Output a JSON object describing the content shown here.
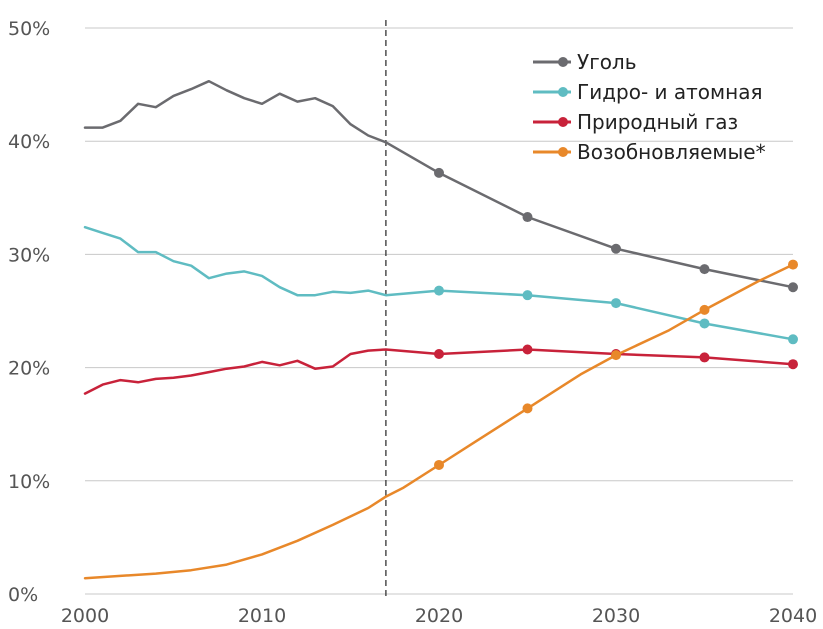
{
  "chart_data": {
    "type": "line",
    "title": "",
    "xlabel": "",
    "ylabel": "",
    "xlim": [
      2000,
      2040
    ],
    "ylim": [
      0,
      50
    ],
    "x_ticks": [
      2000,
      2010,
      2020,
      2030,
      2040
    ],
    "x_tick_labels": [
      "2000",
      "2010",
      "2020",
      "2030",
      "2040"
    ],
    "y_ticks": [
      0,
      10,
      20,
      30,
      40,
      50
    ],
    "y_tick_labels": [
      "0%",
      "10%",
      "20%",
      "30%",
      "40%",
      "50%"
    ],
    "grid": "horizontal",
    "legend_position": "top-right",
    "vertical_marker_x": 2017,
    "series": [
      {
        "name": "Уголь",
        "color": "#6b6b6f",
        "x": [
          2000,
          2001,
          2002,
          2003,
          2004,
          2005,
          2006,
          2007,
          2008,
          2009,
          2010,
          2011,
          2012,
          2013,
          2014,
          2015,
          2016,
          2017,
          2020,
          2025,
          2030,
          2035,
          2040
        ],
        "y": [
          41.2,
          41.2,
          41.8,
          43.3,
          43.0,
          44.0,
          44.6,
          45.3,
          44.5,
          43.8,
          43.3,
          44.2,
          43.5,
          43.8,
          43.1,
          41.5,
          40.5,
          39.9,
          37.2,
          33.3,
          30.5,
          28.7,
          27.1
        ],
        "markers": [
          2020,
          2025,
          2030,
          2035,
          2040
        ]
      },
      {
        "name": "Гидро- и атомная",
        "color": "#5fbcc2",
        "x": [
          2000,
          2001,
          2002,
          2003,
          2004,
          2005,
          2006,
          2007,
          2008,
          2009,
          2010,
          2011,
          2012,
          2013,
          2014,
          2015,
          2016,
          2017,
          2020,
          2025,
          2030,
          2035,
          2040
        ],
        "y": [
          32.4,
          31.9,
          31.4,
          30.2,
          30.2,
          29.4,
          29.0,
          27.9,
          28.3,
          28.5,
          28.1,
          27.1,
          26.4,
          26.4,
          26.7,
          26.6,
          26.8,
          26.4,
          26.8,
          26.4,
          25.7,
          23.9,
          22.5
        ],
        "markers": [
          2020,
          2025,
          2030,
          2035,
          2040
        ]
      },
      {
        "name": "Природный газ",
        "color": "#c8223a",
        "x": [
          2000,
          2001,
          2002,
          2003,
          2004,
          2005,
          2006,
          2007,
          2008,
          2009,
          2010,
          2011,
          2012,
          2013,
          2014,
          2015,
          2016,
          2017,
          2020,
          2025,
          2030,
          2035,
          2040
        ],
        "y": [
          17.7,
          18.5,
          18.9,
          18.7,
          19.0,
          19.1,
          19.3,
          19.6,
          19.9,
          20.1,
          20.5,
          20.2,
          20.6,
          19.9,
          20.1,
          21.2,
          21.5,
          21.6,
          21.2,
          21.6,
          21.2,
          20.9,
          20.3
        ],
        "markers": [
          2020,
          2025,
          2030,
          2035,
          2040
        ]
      },
      {
        "name": "Возобновляемые*",
        "color": "#e8882a",
        "x": [
          2000,
          2002,
          2004,
          2006,
          2008,
          2010,
          2012,
          2014,
          2016,
          2017,
          2018,
          2020,
          2022,
          2025,
          2028,
          2030,
          2033,
          2035,
          2038,
          2040
        ],
        "y": [
          1.4,
          1.6,
          1.8,
          2.1,
          2.6,
          3.5,
          4.7,
          6.1,
          7.6,
          8.6,
          9.4,
          11.4,
          13.4,
          16.4,
          19.4,
          21.1,
          23.3,
          25.1,
          27.6,
          29.1
        ],
        "markers": [
          2020,
          2025,
          2030,
          2035,
          2040
        ]
      }
    ]
  }
}
